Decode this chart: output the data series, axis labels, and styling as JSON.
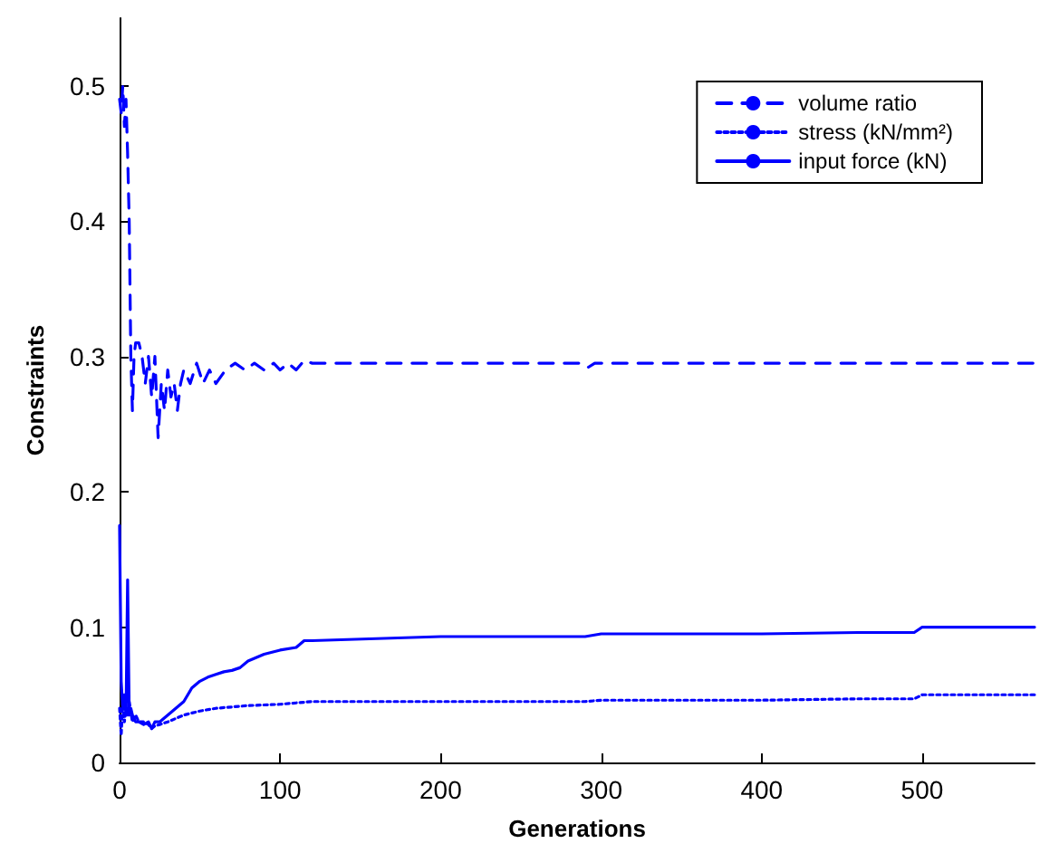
{
  "chart_data": {
    "type": "line",
    "xlabel": "Generations",
    "ylabel": "Constraints",
    "xlim": [
      0,
      570
    ],
    "ylim": [
      0,
      0.55
    ],
    "xticks": [
      0,
      100,
      200,
      300,
      400,
      500
    ],
    "yticks": [
      0,
      0.1,
      0.2,
      0.3,
      0.4,
      0.5
    ],
    "grid": false,
    "legend": "top right",
    "marker": "none",
    "series": [
      {
        "name": "volume ratio",
        "color": "#0000ff",
        "line_style": "dashed",
        "x": [
          0,
          1,
          2,
          3,
          4,
          5,
          6,
          7,
          8,
          9,
          10,
          12,
          14,
          16,
          18,
          20,
          22,
          24,
          26,
          28,
          30,
          32,
          34,
          36,
          38,
          40,
          44,
          48,
          52,
          56,
          60,
          66,
          72,
          78,
          84,
          90,
          96,
          100,
          105,
          110,
          115,
          120,
          200,
          288,
          292,
          296,
          300,
          400,
          500,
          570
        ],
        "values": [
          0.49,
          0.48,
          0.5,
          0.47,
          0.49,
          0.45,
          0.4,
          0.3,
          0.26,
          0.3,
          0.31,
          0.31,
          0.3,
          0.28,
          0.3,
          0.27,
          0.3,
          0.24,
          0.28,
          0.26,
          0.29,
          0.27,
          0.28,
          0.26,
          0.28,
          0.29,
          0.28,
          0.295,
          0.28,
          0.29,
          0.28,
          0.29,
          0.295,
          0.29,
          0.295,
          0.29,
          0.295,
          0.29,
          0.295,
          0.29,
          0.297,
          0.295,
          0.295,
          0.295,
          0.292,
          0.295,
          0.295,
          0.295,
          0.295,
          0.295
        ]
      },
      {
        "name": "stress (kN/mm²)",
        "color": "#0000ff",
        "line_style": "dotted",
        "x": [
          0,
          1,
          2,
          3,
          4,
          5,
          6,
          8,
          10,
          12,
          15,
          18,
          20,
          22,
          25,
          30,
          40,
          50,
          60,
          80,
          100,
          120,
          200,
          290,
          300,
          400,
          460,
          495,
          500,
          570
        ],
        "values": [
          0.04,
          0.02,
          0.045,
          0.03,
          0.04,
          0.035,
          0.045,
          0.03,
          0.035,
          0.03,
          0.03,
          0.028,
          0.025,
          0.027,
          0.028,
          0.03,
          0.035,
          0.038,
          0.04,
          0.042,
          0.043,
          0.045,
          0.045,
          0.045,
          0.046,
          0.046,
          0.047,
          0.047,
          0.05,
          0.05
        ]
      },
      {
        "name": "input force (kN)",
        "color": "#0000ff",
        "line_style": "solid",
        "x": [
          0,
          1,
          2,
          3,
          4,
          5,
          6,
          7,
          8,
          10,
          12,
          15,
          18,
          20,
          22,
          25,
          30,
          35,
          40,
          45,
          50,
          55,
          60,
          65,
          70,
          75,
          80,
          90,
          100,
          110,
          115,
          120,
          200,
          290,
          300,
          400,
          460,
          495,
          500,
          570
        ],
        "values": [
          0.175,
          0.06,
          0.04,
          0.05,
          0.035,
          0.135,
          0.035,
          0.04,
          0.035,
          0.03,
          0.03,
          0.028,
          0.03,
          0.025,
          0.03,
          0.03,
          0.035,
          0.04,
          0.045,
          0.055,
          0.06,
          0.063,
          0.065,
          0.067,
          0.068,
          0.07,
          0.075,
          0.08,
          0.083,
          0.085,
          0.09,
          0.09,
          0.093,
          0.093,
          0.095,
          0.095,
          0.096,
          0.096,
          0.1,
          0.1
        ]
      }
    ]
  }
}
